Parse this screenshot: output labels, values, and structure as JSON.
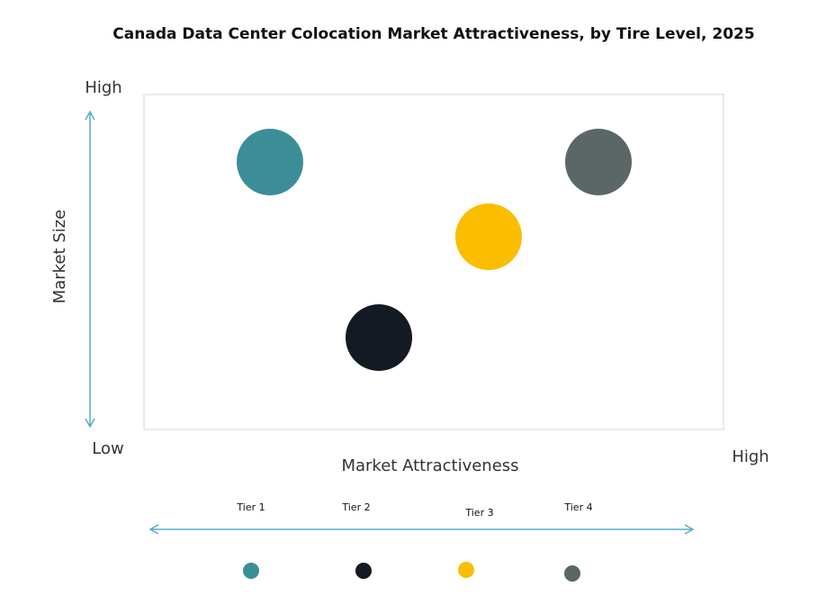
{
  "title": "Canada Data Center Colocation Market Attractiveness,  by Tire Level, 2025",
  "y_axis": {
    "label": "Market Size",
    "high": "High",
    "low": "Low"
  },
  "x_axis": {
    "label": "Market Attractiveness",
    "high": "High"
  },
  "tiers": [
    {
      "label": "Tier 1",
      "color": "#3b8e97"
    },
    {
      "label": "Tier 2",
      "color": "#141a22"
    },
    {
      "label": "Tier 3",
      "color": "#fbbd00"
    },
    {
      "label": "Tier 4",
      "color": "#5b6767"
    }
  ]
}
